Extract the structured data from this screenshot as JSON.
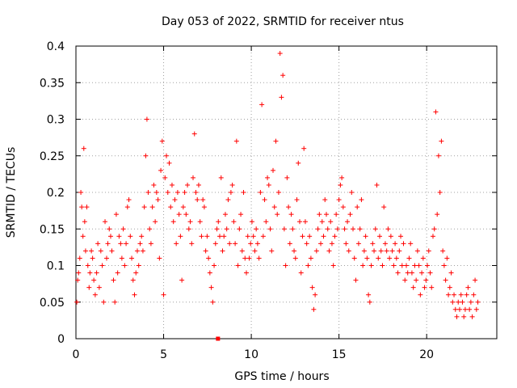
{
  "chart_data": {
    "type": "scatter",
    "title": "Day 053 of 2022, SRMTID for receiver ntus",
    "xlabel": "GPS time / hours",
    "ylabel": "SRMTID / TECUs",
    "xlim": [
      0,
      24
    ],
    "ylim": [
      0,
      0.4
    ],
    "xticks": [
      0,
      5,
      10,
      15,
      20
    ],
    "yticks": [
      0,
      0.05,
      0.1,
      0.15,
      0.2,
      0.25,
      0.3,
      0.35,
      0.4
    ],
    "xtick_labels": [
      "0",
      "5",
      "10",
      "15",
      "20"
    ],
    "ytick_labels": [
      "0",
      "0.05",
      "0.1",
      "0.15",
      "0.2",
      "0.25",
      "0.3",
      "0.35",
      "0.4"
    ],
    "grid": true,
    "marker": "plus",
    "series": [
      {
        "name": "SRMTID",
        "color": "#ff0000",
        "x": [
          0.05,
          0.1,
          0.15,
          0.22,
          0.28,
          0.33,
          0.4,
          0.45,
          0.5,
          0.55,
          0.62,
          0.68,
          0.75,
          0.8,
          0.88,
          0.95,
          1.02,
          1.1,
          1.18,
          1.25,
          1.33,
          1.42,
          1.5,
          1.58,
          1.66,
          1.75,
          1.82,
          1.9,
          1.98,
          2.05,
          2.14,
          2.22,
          2.3,
          2.38,
          2.46,
          2.55,
          2.62,
          2.7,
          2.78,
          2.86,
          2.94,
          3.02,
          3.1,
          3.18,
          3.26,
          3.34,
          3.42,
          3.5,
          3.58,
          3.66,
          3.74,
          3.82,
          3.9,
          3.98,
          4.05,
          4.12,
          4.2,
          4.28,
          4.36,
          4.44,
          4.52,
          4.6,
          4.68,
          4.76,
          4.84,
          4.92,
          5.0,
          5.08,
          5.16,
          5.24,
          5.32,
          5.4,
          5.48,
          5.56,
          5.64,
          5.72,
          5.8,
          5.88,
          5.96,
          6.04,
          6.12,
          6.2,
          6.28,
          6.36,
          6.44,
          6.52,
          6.6,
          6.68,
          6.76,
          6.84,
          6.92,
          7.0,
          7.08,
          7.16,
          7.24,
          7.32,
          7.4,
          7.48,
          7.56,
          7.64,
          7.72,
          7.8,
          7.88,
          7.96,
          8.04,
          8.12,
          8.2,
          8.28,
          8.36,
          8.44,
          8.52,
          8.6,
          8.68,
          8.76,
          8.84,
          8.92,
          9.0,
          9.08,
          9.16,
          9.24,
          9.32,
          9.4,
          9.48,
          9.56,
          9.64,
          9.72,
          9.8,
          9.88,
          9.96,
          10.04,
          10.12,
          10.2,
          10.28,
          10.36,
          10.44,
          10.52,
          10.6,
          10.68,
          10.76,
          10.84,
          10.92,
          11.0,
          11.08,
          11.16,
          11.24,
          11.32,
          11.4,
          11.48,
          11.56,
          11.64,
          11.72,
          11.8,
          11.88,
          11.96,
          12.04,
          12.12,
          12.2,
          12.28,
          12.36,
          12.44,
          12.52,
          12.6,
          12.68,
          12.76,
          12.84,
          12.92,
          13.0,
          13.08,
          13.16,
          13.24,
          13.32,
          13.4,
          13.48,
          13.56,
          13.64,
          13.72,
          13.8,
          13.88,
          13.96,
          14.04,
          14.12,
          14.2,
          14.28,
          14.36,
          14.44,
          14.52,
          14.6,
          14.68,
          14.76,
          14.84,
          14.92,
          15.0,
          15.08,
          15.16,
          15.24,
          15.32,
          15.4,
          15.48,
          15.56,
          15.64,
          15.72,
          15.8,
          15.88,
          15.96,
          16.04,
          16.12,
          16.2,
          16.28,
          16.36,
          16.44,
          16.52,
          16.6,
          16.68,
          16.76,
          16.84,
          16.92,
          17.0,
          17.08,
          17.16,
          17.24,
          17.32,
          17.4,
          17.48,
          17.56,
          17.64,
          17.72,
          17.8,
          17.88,
          17.96,
          18.04,
          18.12,
          18.2,
          18.28,
          18.36,
          18.44,
          18.52,
          18.6,
          18.68,
          18.76,
          18.84,
          18.92,
          19.0,
          19.08,
          19.16,
          19.24,
          19.32,
          19.4,
          19.48,
          19.56,
          19.64,
          19.72,
          19.8,
          19.88,
          19.96,
          20.04,
          20.12,
          20.2,
          20.28,
          20.36,
          20.44,
          20.52,
          20.6,
          20.68,
          20.76,
          20.84,
          20.92,
          21.0,
          21.08,
          21.16,
          21.24,
          21.32,
          21.4,
          21.48,
          21.56,
          21.64,
          21.72,
          21.8,
          21.88,
          21.96,
          22.04,
          22.12,
          22.2,
          22.28,
          22.36,
          22.44,
          22.52,
          22.6,
          22.68,
          22.76,
          22.84,
          22.92
        ],
        "y": [
          0.05,
          0.08,
          0.09,
          0.11,
          0.2,
          0.18,
          0.14,
          0.26,
          0.16,
          0.12,
          0.18,
          0.1,
          0.07,
          0.09,
          0.12,
          0.11,
          0.08,
          0.06,
          0.09,
          0.13,
          0.07,
          0.12,
          0.1,
          0.05,
          0.16,
          0.11,
          0.13,
          0.15,
          0.14,
          0.12,
          0.08,
          0.05,
          0.17,
          0.09,
          0.14,
          0.13,
          0.11,
          0.15,
          0.1,
          0.13,
          0.18,
          0.19,
          0.14,
          0.11,
          0.08,
          0.06,
          0.09,
          0.12,
          0.1,
          0.13,
          0.14,
          0.12,
          0.18,
          0.25,
          0.3,
          0.2,
          0.15,
          0.13,
          0.18,
          0.21,
          0.16,
          0.2,
          0.19,
          0.11,
          0.23,
          0.27,
          0.06,
          0.22,
          0.25,
          0.2,
          0.24,
          0.18,
          0.21,
          0.16,
          0.19,
          0.13,
          0.2,
          0.17,
          0.14,
          0.08,
          0.18,
          0.2,
          0.17,
          0.21,
          0.15,
          0.16,
          0.13,
          0.22,
          0.28,
          0.2,
          0.19,
          0.21,
          0.16,
          0.14,
          0.19,
          0.18,
          0.12,
          0.14,
          0.11,
          0.09,
          0.07,
          0.05,
          0.1,
          0.13,
          0.15,
          0.16,
          0.14,
          0.22,
          0.12,
          0.14,
          0.17,
          0.15,
          0.19,
          0.13,
          0.2,
          0.21,
          0.16,
          0.13,
          0.27,
          0.1,
          0.15,
          0.17,
          0.12,
          0.2,
          0.11,
          0.09,
          0.14,
          0.11,
          0.13,
          0.16,
          0.14,
          0.12,
          0.15,
          0.13,
          0.11,
          0.2,
          0.32,
          0.14,
          0.19,
          0.16,
          0.22,
          0.21,
          0.15,
          0.12,
          0.23,
          0.18,
          0.27,
          0.17,
          0.2,
          0.39,
          0.33,
          0.36,
          0.15,
          0.1,
          0.22,
          0.18,
          0.13,
          0.17,
          0.15,
          0.12,
          0.11,
          0.19,
          0.24,
          0.16,
          0.09,
          0.14,
          0.26,
          0.16,
          0.13,
          0.1,
          0.14,
          0.11,
          0.07,
          0.04,
          0.06,
          0.12,
          0.15,
          0.17,
          0.13,
          0.16,
          0.14,
          0.19,
          0.17,
          0.15,
          0.12,
          0.16,
          0.13,
          0.1,
          0.14,
          0.17,
          0.15,
          0.19,
          0.21,
          0.22,
          0.18,
          0.15,
          0.13,
          0.16,
          0.12,
          0.17,
          0.2,
          0.15,
          0.11,
          0.08,
          0.18,
          0.13,
          0.15,
          0.19,
          0.1,
          0.12,
          0.14,
          0.11,
          0.06,
          0.05,
          0.1,
          0.13,
          0.12,
          0.15,
          0.21,
          0.11,
          0.14,
          0.12,
          0.1,
          0.18,
          0.13,
          0.12,
          0.15,
          0.11,
          0.14,
          0.12,
          0.1,
          0.13,
          0.11,
          0.09,
          0.12,
          0.14,
          0.1,
          0.13,
          0.08,
          0.1,
          0.09,
          0.11,
          0.13,
          0.09,
          0.07,
          0.1,
          0.08,
          0.12,
          0.1,
          0.06,
          0.09,
          0.11,
          0.07,
          0.08,
          0.1,
          0.12,
          0.09,
          0.07,
          0.14,
          0.15,
          0.31,
          0.17,
          0.25,
          0.2,
          0.27,
          0.12,
          0.1,
          0.08,
          0.11,
          0.06,
          0.07,
          0.09,
          0.05,
          0.06,
          0.04,
          0.03,
          0.05,
          0.04,
          0.06,
          0.05,
          0.03,
          0.04,
          0.06,
          0.07,
          0.04,
          0.05,
          0.03,
          0.06,
          0.08,
          0.04,
          0.05
        ]
      }
    ],
    "zero_marker_x": 8.1
  }
}
